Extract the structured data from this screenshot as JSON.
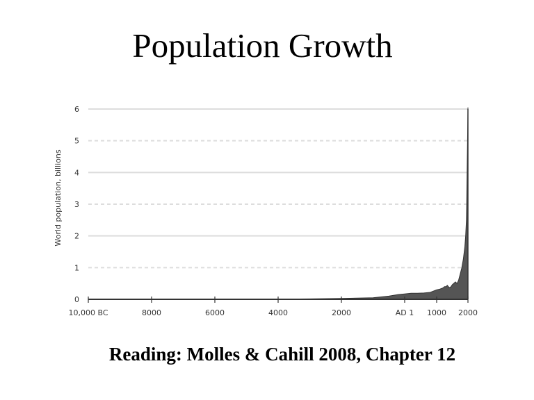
{
  "slide": {
    "title": "Population Growth",
    "footer": "Reading: Molles & Cahill 2008, Chapter 12"
  },
  "chart_data": {
    "type": "area",
    "title": "",
    "xlabel": "",
    "ylabel": "World population, billions",
    "ylim": [
      0,
      6
    ],
    "y_ticks": [
      "0",
      "1",
      "2",
      "3",
      "4",
      "5",
      "6"
    ],
    "x_tick_labels": [
      "10,000 BC",
      "8000",
      "6000",
      "4000",
      "2000",
      "AD 1",
      "1000",
      "2000"
    ],
    "x_tick_years": [
      -10000,
      -8000,
      -6000,
      -4000,
      -2000,
      1,
      1000,
      2000
    ],
    "grid": {
      "solid_at": [
        2,
        4,
        6
      ],
      "dashed_at": [
        1,
        3,
        5
      ]
    },
    "legend": null,
    "fill_color": "#555555",
    "series": [
      {
        "name": "World population (billions)",
        "x": [
          -10000,
          -8000,
          -6000,
          -4000,
          -3000,
          -2000,
          -1000,
          -500,
          -200,
          1,
          200,
          400,
          600,
          800,
          1000,
          1100,
          1200,
          1250,
          1300,
          1340,
          1400,
          1450,
          1500,
          1600,
          1650,
          1700,
          1750,
          1800,
          1850,
          1900,
          1927,
          1950,
          1960,
          1974,
          1987,
          1999,
          2000
        ],
        "values": [
          0.004,
          0.005,
          0.005,
          0.007,
          0.014,
          0.027,
          0.05,
          0.1,
          0.15,
          0.17,
          0.19,
          0.19,
          0.2,
          0.22,
          0.3,
          0.32,
          0.36,
          0.4,
          0.4,
          0.44,
          0.37,
          0.39,
          0.46,
          0.55,
          0.5,
          0.6,
          0.79,
          0.98,
          1.26,
          1.65,
          2.0,
          2.5,
          3.0,
          4.0,
          5.0,
          6.0,
          6.05
        ]
      }
    ]
  }
}
